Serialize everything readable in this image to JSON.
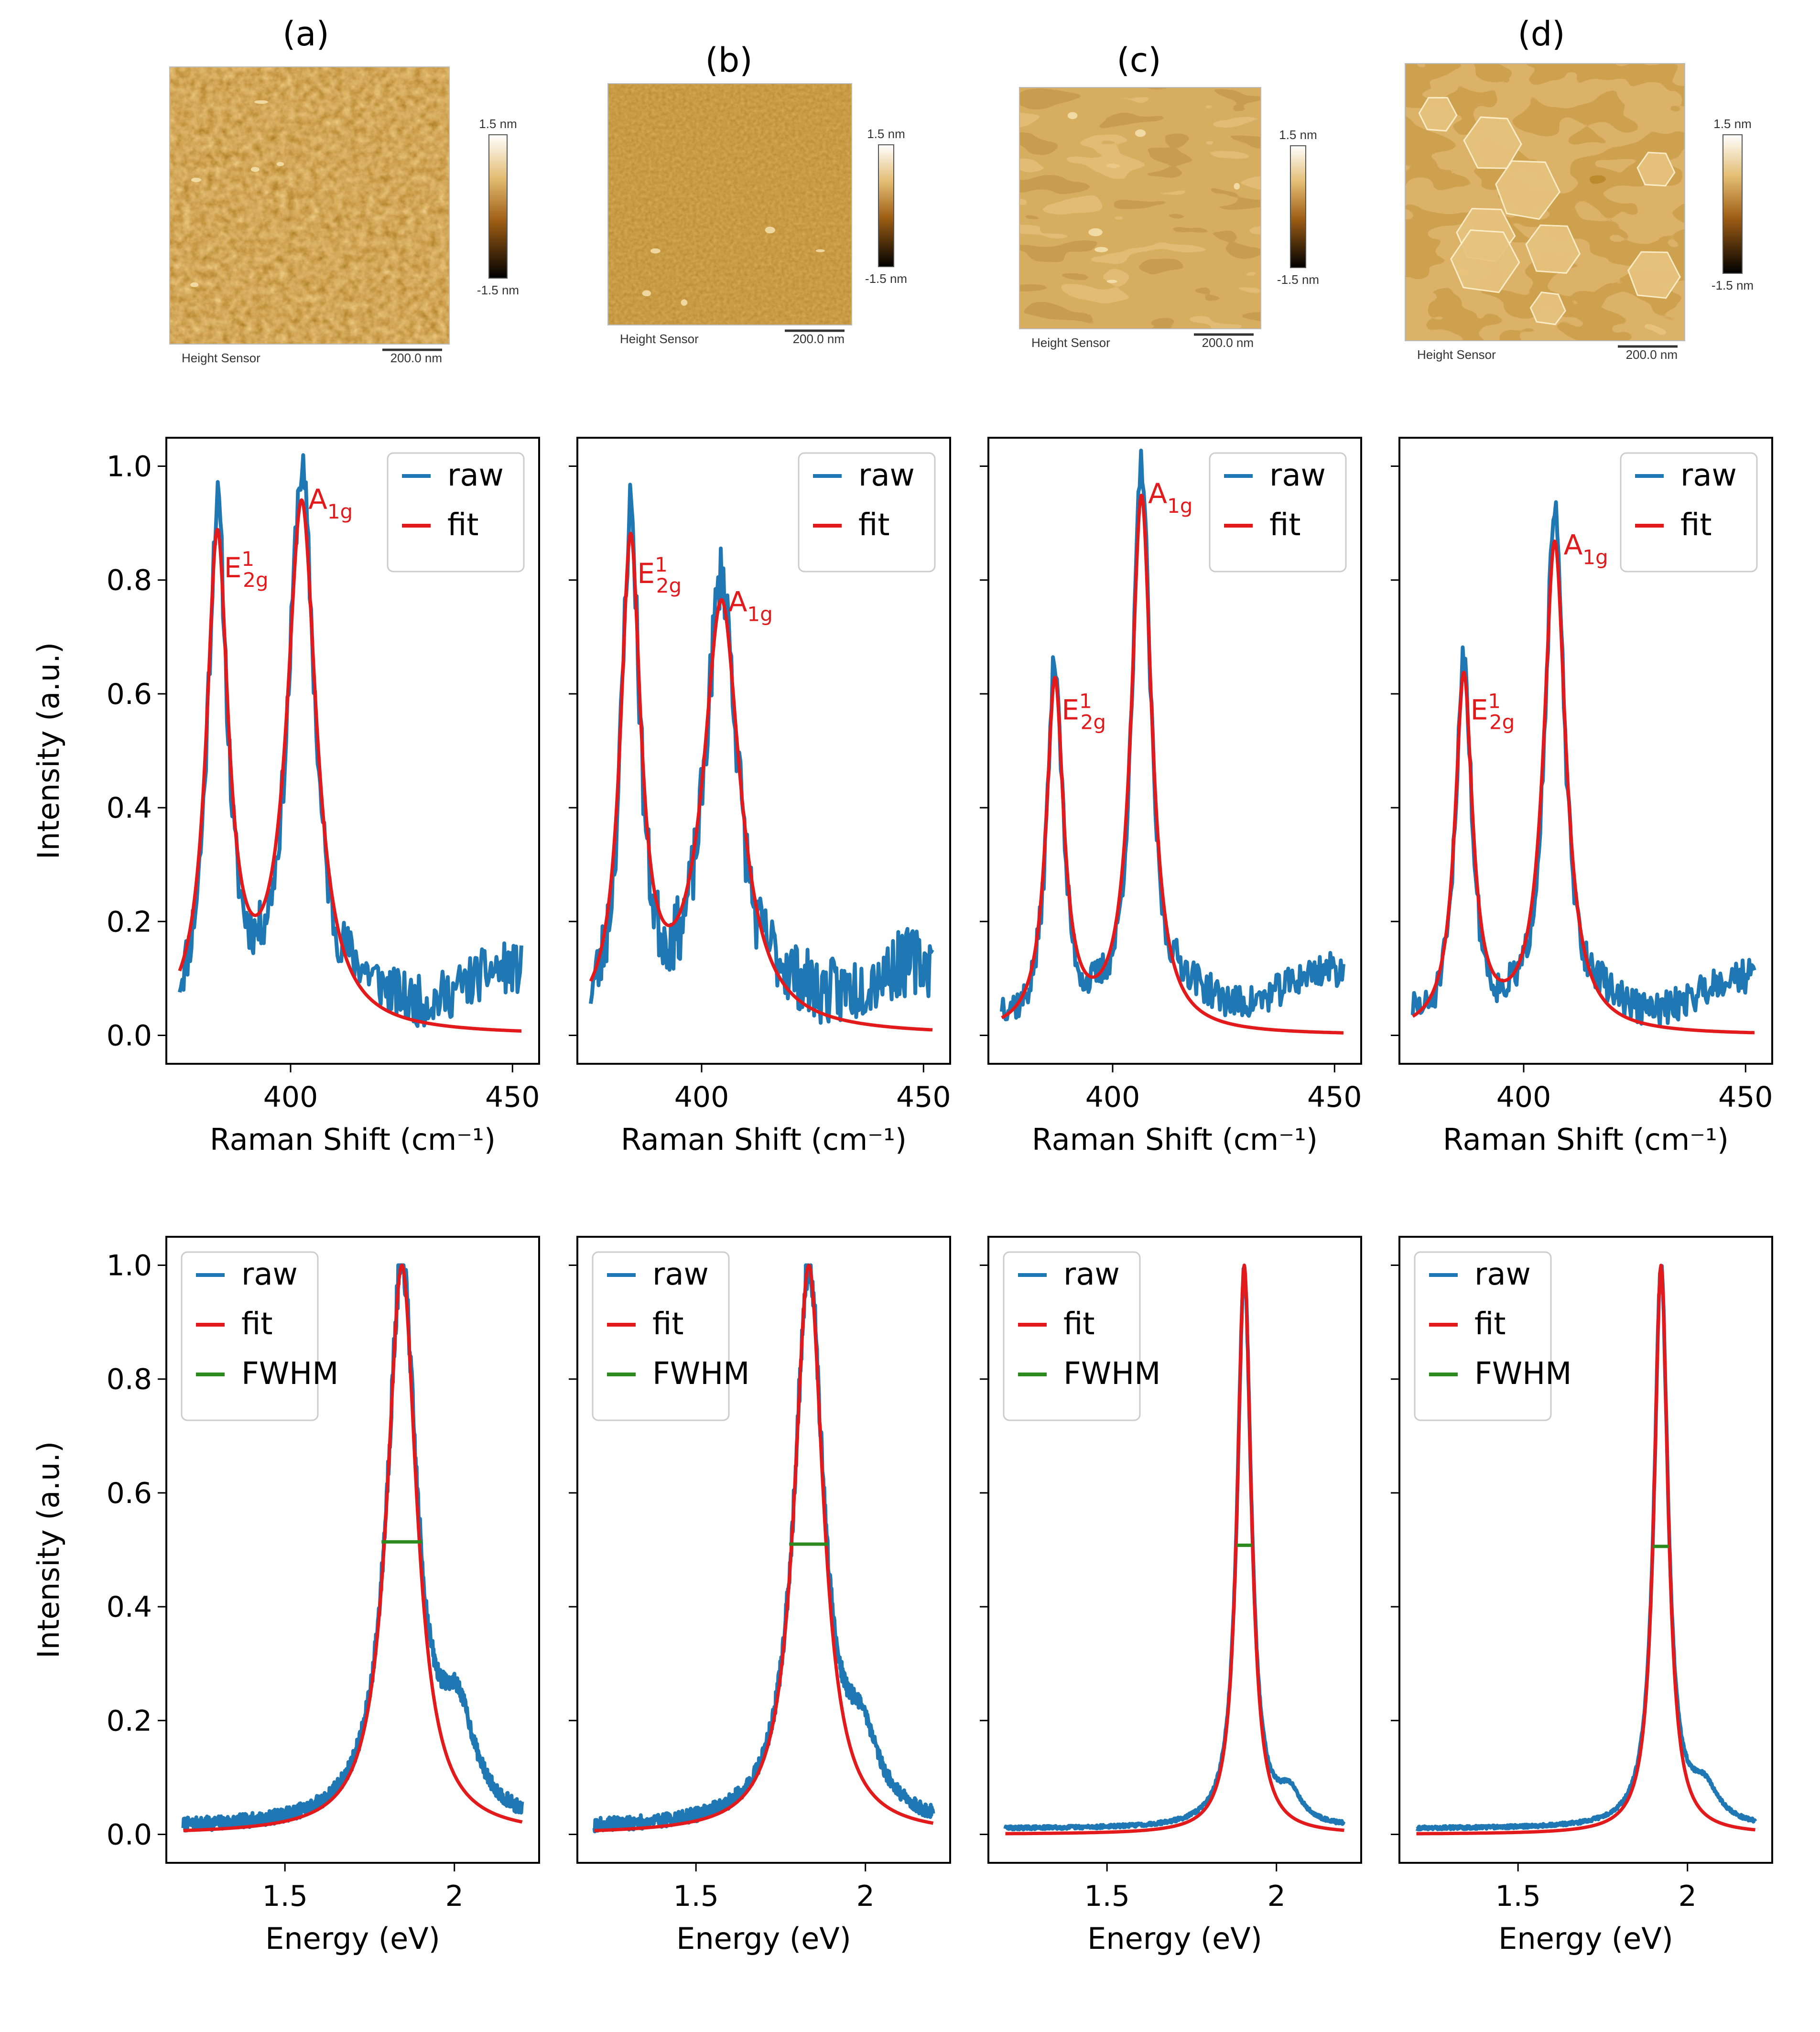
{
  "colors": {
    "raw": "#1f77b4",
    "fit": "#e31a1c",
    "fwhm": "#2c8a1e"
  },
  "afm": [
    {
      "label": "(a)",
      "caption_left": "Height Sensor",
      "caption_right": "200.0 nm",
      "scale_top": "1.5 nm",
      "scale_bottom": "-1.5 nm",
      "texture": "grain"
    },
    {
      "label": "(b)",
      "caption_left": "Height Sensor",
      "caption_right": "200.0 nm",
      "scale_top": "1.5 nm",
      "scale_bottom": "-1.5 nm",
      "texture": "fine"
    },
    {
      "label": "(c)",
      "caption_left": "Height Sensor",
      "caption_right": "200.0 nm",
      "scale_top": "1.5 nm",
      "scale_bottom": "-1.5 nm",
      "texture": "terrace"
    },
    {
      "label": "(d)",
      "caption_left": "Height Sensor",
      "caption_right": "200.0 nm",
      "scale_top": "1.5 nm",
      "scale_bottom": "-1.5 nm",
      "texture": "hexagon"
    }
  ],
  "chart_data": [
    {
      "type": "line",
      "row": "raman",
      "panel": "a",
      "xlabel": "Raman Shift (cm⁻¹)",
      "ylabel": "Intensity (a.u.)",
      "xlim": [
        372,
        456
      ],
      "ylim": [
        -0.05,
        1.05
      ],
      "xticks": [
        400,
        450
      ],
      "yticks": [
        0.0,
        0.2,
        0.4,
        0.6,
        0.8,
        1.0
      ],
      "legend": {
        "position": "top-right",
        "entries": [
          "raw",
          "fit"
        ]
      },
      "fit_peaks": [
        {
          "center": 383.5,
          "height": 0.85,
          "width": 3.0
        },
        {
          "center": 402.5,
          "height": 0.92,
          "width": 4.0
        }
      ],
      "raw": {
        "x_range": [
          375,
          452
        ],
        "noise": 0.045,
        "baseline": 0.07,
        "seed": 11
      },
      "annotations": [
        {
          "base": "E",
          "sup": "1",
          "sub": "2g",
          "x": 385.0,
          "y": 0.82
        },
        {
          "base": "A",
          "sup": "",
          "sub": "1g",
          "x": 404.0,
          "y": 0.94
        }
      ]
    },
    {
      "type": "line",
      "row": "raman",
      "panel": "b",
      "xlabel": "Raman Shift (cm⁻¹)",
      "ylabel": "",
      "xlim": [
        372,
        456
      ],
      "ylim": [
        -0.05,
        1.05
      ],
      "xticks": [
        400,
        450
      ],
      "yticks": [
        0.0,
        0.2,
        0.4,
        0.6,
        0.8,
        1.0
      ],
      "legend": {
        "position": "top-right",
        "entries": [
          "raw",
          "fit"
        ]
      },
      "fit_peaks": [
        {
          "center": 384.0,
          "height": 0.84,
          "width": 2.8
        },
        {
          "center": 404.5,
          "height": 0.75,
          "width": 5.0
        }
      ],
      "raw": {
        "x_range": [
          375,
          452
        ],
        "noise": 0.06,
        "baseline": 0.08,
        "seed": 23
      },
      "annotations": [
        {
          "base": "E",
          "sup": "1",
          "sub": "2g",
          "x": 385.5,
          "y": 0.81
        },
        {
          "base": "A",
          "sup": "",
          "sub": "1g",
          "x": 406.0,
          "y": 0.76
        }
      ]
    },
    {
      "type": "line",
      "row": "raman",
      "panel": "c",
      "xlabel": "Raman Shift (cm⁻¹)",
      "ylabel": "",
      "xlim": [
        372,
        456
      ],
      "ylim": [
        -0.05,
        1.05
      ],
      "xticks": [
        400,
        450
      ],
      "yticks": [
        0.0,
        0.2,
        0.4,
        0.6,
        0.8,
        1.0
      ],
      "legend": {
        "position": "top-right",
        "entries": [
          "raw",
          "fit"
        ]
      },
      "fit_peaks": [
        {
          "center": 387.0,
          "height": 0.61,
          "width": 2.4
        },
        {
          "center": 406.5,
          "height": 0.94,
          "width": 2.8
        }
      ],
      "raw": {
        "x_range": [
          375,
          452
        ],
        "noise": 0.03,
        "baseline": 0.07,
        "seed": 37
      },
      "annotations": [
        {
          "base": "E",
          "sup": "1",
          "sub": "2g",
          "x": 388.5,
          "y": 0.57
        },
        {
          "base": "A",
          "sup": "",
          "sub": "1g",
          "x": 408.0,
          "y": 0.95
        }
      ]
    },
    {
      "type": "line",
      "row": "raman",
      "panel": "d",
      "xlabel": "Raman Shift (cm⁻¹)",
      "ylabel": "",
      "xlim": [
        372,
        456
      ],
      "ylim": [
        -0.05,
        1.05
      ],
      "xticks": [
        400,
        450
      ],
      "yticks": [
        0.0,
        0.2,
        0.4,
        0.6,
        0.8,
        1.0
      ],
      "legend": {
        "position": "top-right",
        "entries": [
          "raw",
          "fit"
        ]
      },
      "fit_peaks": [
        {
          "center": 386.5,
          "height": 0.62,
          "width": 2.4
        },
        {
          "center": 407.0,
          "height": 0.86,
          "width": 3.0
        }
      ],
      "raw": {
        "x_range": [
          375,
          452
        ],
        "noise": 0.03,
        "baseline": 0.06,
        "seed": 51
      },
      "annotations": [
        {
          "base": "E",
          "sup": "1",
          "sub": "2g",
          "x": 388.0,
          "y": 0.57
        },
        {
          "base": "A",
          "sup": "",
          "sub": "1g",
          "x": 409.0,
          "y": 0.86
        }
      ]
    },
    {
      "type": "line",
      "row": "pl",
      "panel": "a",
      "xlabel": "Energy (eV)",
      "ylabel": "Intensity (a.u.)",
      "xlim": [
        1.15,
        2.25
      ],
      "ylim": [
        -0.05,
        1.05
      ],
      "xticks": [
        1.5,
        2.0
      ],
      "yticks": [
        0.0,
        0.2,
        0.4,
        0.6,
        0.8,
        1.0
      ],
      "legend": {
        "position": "top-left",
        "entries": [
          "raw",
          "fit",
          "FWHM"
        ]
      },
      "fit_peak": {
        "center": 1.845,
        "height": 1.0,
        "width": 0.053
      },
      "shoulder": {
        "center": 2.01,
        "height": 0.16,
        "width": 0.06
      },
      "raw": {
        "x_range": [
          1.2,
          2.2
        ],
        "noise": 0.012,
        "seed": 7
      },
      "fwhm": {
        "x_start": 1.785,
        "x_end": 1.905,
        "y": 0.514
      }
    },
    {
      "type": "line",
      "row": "pl",
      "panel": "b",
      "xlabel": "Energy (eV)",
      "ylabel": "",
      "xlim": [
        1.15,
        2.25
      ],
      "ylim": [
        -0.05,
        1.05
      ],
      "xticks": [
        1.5,
        2.0
      ],
      "yticks": [
        0.0,
        0.2,
        0.4,
        0.6,
        0.8,
        1.0
      ],
      "legend": {
        "position": "top-left",
        "entries": [
          "raw",
          "fit",
          "FWHM"
        ]
      },
      "fit_peak": {
        "center": 1.833,
        "height": 1.0,
        "width": 0.052
      },
      "shoulder": {
        "center": 1.99,
        "height": 0.12,
        "width": 0.06
      },
      "raw": {
        "x_range": [
          1.2,
          2.2
        ],
        "noise": 0.012,
        "seed": 19
      },
      "fwhm": {
        "x_start": 1.775,
        "x_end": 1.89,
        "y": 0.51
      }
    },
    {
      "type": "line",
      "row": "pl",
      "panel": "c",
      "xlabel": "Energy (eV)",
      "ylabel": "",
      "xlim": [
        1.15,
        2.25
      ],
      "ylim": [
        -0.05,
        1.05
      ],
      "xticks": [
        1.5,
        2.0
      ],
      "yticks": [
        0.0,
        0.2,
        0.4,
        0.6,
        0.8,
        1.0
      ],
      "legend": {
        "position": "top-left",
        "entries": [
          "raw",
          "fit",
          "FWHM"
        ]
      },
      "fit_peak": {
        "center": 1.905,
        "height": 1.0,
        "width": 0.025
      },
      "shoulder": {
        "center": 2.04,
        "height": 0.05,
        "width": 0.04
      },
      "raw": {
        "x_range": [
          1.2,
          2.2
        ],
        "noise": 0.003,
        "seed": 29
      },
      "fwhm": {
        "x_start": 1.882,
        "x_end": 1.928,
        "y": 0.508
      }
    },
    {
      "type": "line",
      "row": "pl",
      "panel": "d",
      "xlabel": "Energy (eV)",
      "ylabel": "",
      "xlim": [
        1.15,
        2.25
      ],
      "ylim": [
        -0.05,
        1.05
      ],
      "xticks": [
        1.5,
        2.0
      ],
      "yticks": [
        0.0,
        0.2,
        0.4,
        0.6,
        0.8,
        1.0
      ],
      "legend": {
        "position": "top-left",
        "entries": [
          "raw",
          "fit",
          "FWHM"
        ]
      },
      "fit_peak": {
        "center": 1.922,
        "height": 1.0,
        "width": 0.025
      },
      "shoulder": {
        "center": 2.05,
        "height": 0.06,
        "width": 0.05
      },
      "raw": {
        "x_range": [
          1.2,
          2.2
        ],
        "noise": 0.003,
        "seed": 43
      },
      "fwhm": {
        "x_start": 1.898,
        "x_end": 1.945,
        "y": 0.506
      }
    }
  ]
}
